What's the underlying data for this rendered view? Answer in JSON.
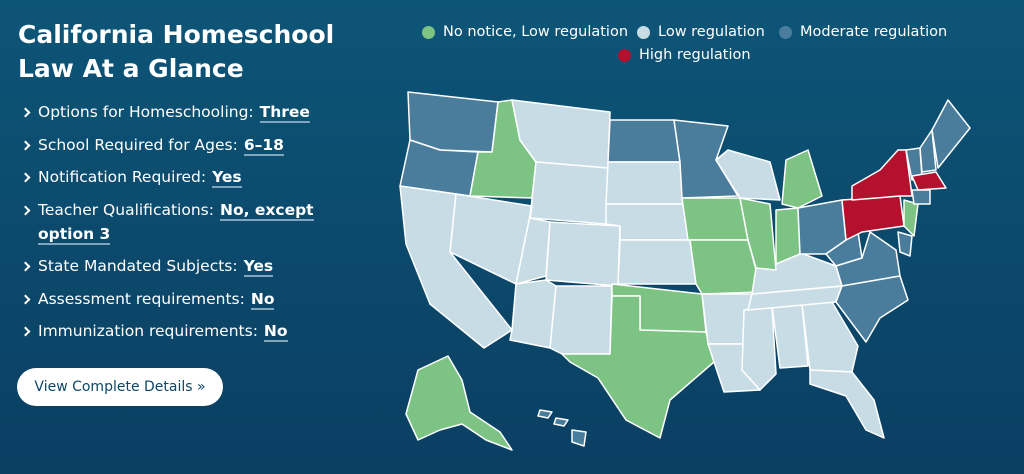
{
  "header": {
    "title": "California Homeschool Law At a Glance"
  },
  "items": [
    {
      "label": "Options for Homeschooling:",
      "value": "Three"
    },
    {
      "label": "School Required for Ages:",
      "value": "6–18"
    },
    {
      "label": "Notification Required:",
      "value": "Yes"
    },
    {
      "label": "Teacher Qualifications:",
      "value": "No, except option 3"
    },
    {
      "label": "State Mandated Subjects:",
      "value": "Yes"
    },
    {
      "label": "Assessment requirements:",
      "value": "No"
    },
    {
      "label": "Immunization requirements:",
      "value": "No"
    }
  ],
  "button": {
    "label": "View Complete Details »"
  },
  "legend": [
    {
      "label": "No notice, Low regulation",
      "color": "#7dc383"
    },
    {
      "label": "Low regulation",
      "color": "#c8dce6"
    },
    {
      "label": "Moderate regulation",
      "color": "#4a7d9c"
    },
    {
      "label": "High regulation",
      "color": "#b3112e"
    }
  ]
}
